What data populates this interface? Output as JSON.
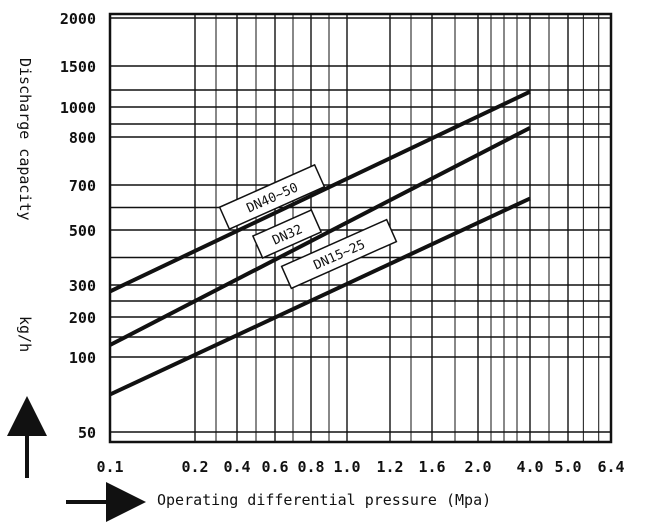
{
  "chart_data": {
    "type": "line",
    "xlabel": "Operating differential pressure (Mpa)",
    "ylabel": "Discharge capacity",
    "yunit": "kg/h",
    "x_ticks": [
      {
        "value": 0.1,
        "label": "0.1"
      },
      {
        "value": 0.2,
        "label": "0.2"
      },
      {
        "value": 0.4,
        "label": "0.4"
      },
      {
        "value": 0.6,
        "label": "0.6"
      },
      {
        "value": 0.8,
        "label": "0.8"
      },
      {
        "value": 1.0,
        "label": "1.0"
      },
      {
        "value": 1.2,
        "label": "1.2"
      },
      {
        "value": 1.6,
        "label": "1.6"
      },
      {
        "value": 2.0,
        "label": "2.0"
      },
      {
        "value": 4.0,
        "label": "4.0"
      },
      {
        "value": 5.0,
        "label": "5.0"
      },
      {
        "value": 6.4,
        "label": "6.4"
      }
    ],
    "y_ticks": [
      {
        "value": 50,
        "label": "50"
      },
      {
        "value": 100,
        "label": "100"
      },
      {
        "value": 200,
        "label": "200"
      },
      {
        "value": 300,
        "label": "300"
      },
      {
        "value": 500,
        "label": "500"
      },
      {
        "value": 700,
        "label": "700"
      },
      {
        "value": 800,
        "label": "800"
      },
      {
        "value": 1000,
        "label": "1000"
      },
      {
        "value": 1500,
        "label": "1500"
      },
      {
        "value": 2000,
        "label": "2000"
      }
    ],
    "extra_y_gridlines": [
      900,
      1200
    ],
    "grid": true,
    "series": [
      {
        "name": "DN40~50",
        "x": [
          0.1,
          4.0
        ],
        "y": [
          280,
          1180
        ]
      },
      {
        "name": "DN32",
        "x": [
          0.1,
          4.0
        ],
        "y": [
          130,
          870
        ]
      },
      {
        "name": "DN15~25",
        "x": [
          0.1,
          4.0
        ],
        "y": [
          75,
          640
        ]
      }
    ]
  }
}
